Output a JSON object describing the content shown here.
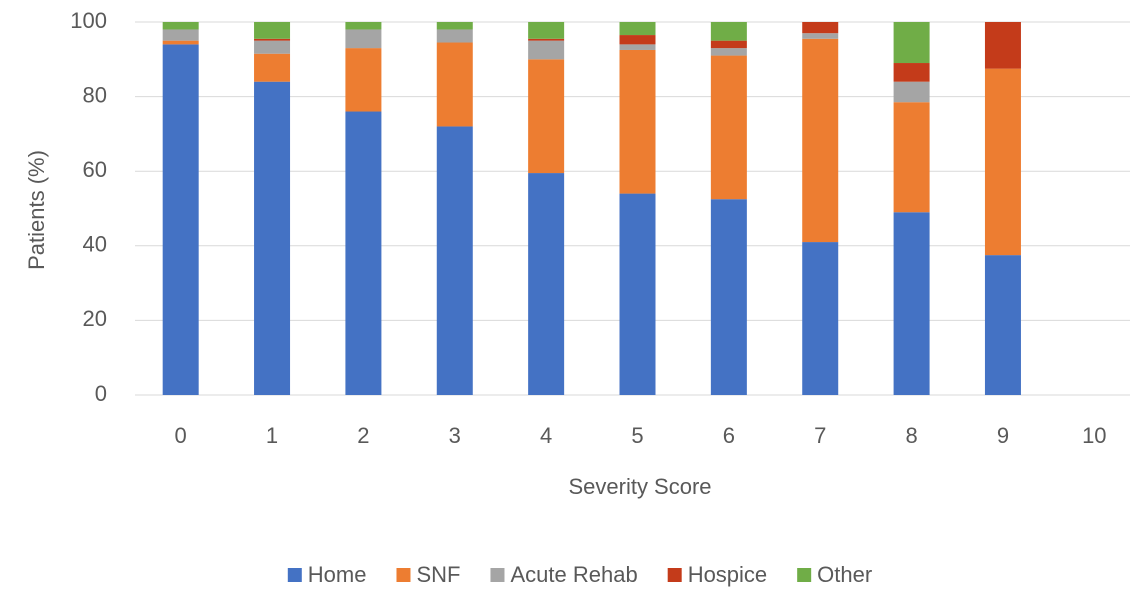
{
  "chart_data": {
    "type": "stacked_bar",
    "x_label": "Severity Score",
    "y_label": "Patients (%)",
    "categories": [
      "0",
      "1",
      "2",
      "3",
      "4",
      "5",
      "6",
      "7",
      "8",
      "9",
      "10"
    ],
    "series": [
      {
        "name": "Home",
        "color": "#4472c4",
        "values": [
          94,
          84,
          76,
          72,
          59.5,
          54,
          52.5,
          41,
          49,
          37.5,
          null
        ]
      },
      {
        "name": "SNF",
        "color": "#ed7d31",
        "values": [
          1,
          7.5,
          17,
          22.5,
          30.5,
          38.5,
          38.5,
          54.5,
          29.5,
          50,
          null
        ]
      },
      {
        "name": "Acute Rehab",
        "color": "#a5a5a5",
        "values": [
          3,
          3.5,
          5,
          3.5,
          5,
          1.5,
          2,
          1.5,
          5.5,
          0,
          null
        ]
      },
      {
        "name": "Hospice",
        "color": "#c43b1a",
        "values": [
          0,
          0.5,
          0,
          0,
          0.5,
          2.5,
          2,
          3,
          5,
          12.5,
          null
        ]
      },
      {
        "name": "Other",
        "color": "#70ad47",
        "values": [
          2,
          4.5,
          2,
          2,
          4.5,
          3.5,
          5,
          0,
          11,
          0,
          null
        ]
      }
    ],
    "ylim": [
      0,
      100
    ],
    "yticks": [
      0,
      20,
      40,
      60,
      80,
      100
    ],
    "grid": true,
    "legend": "bottom"
  }
}
